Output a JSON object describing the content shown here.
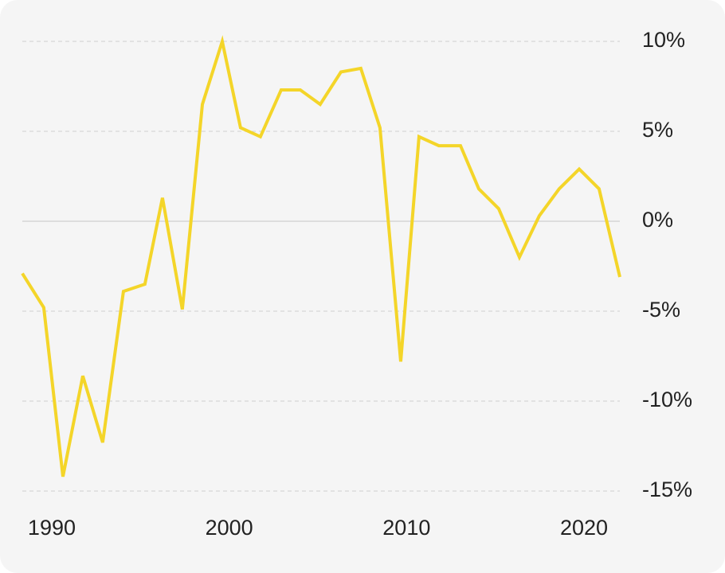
{
  "chart_data": {
    "type": "line",
    "x": [
      1988.34,
      1989.55,
      1990.63,
      1991.75,
      1992.87,
      1994.04,
      1995.25,
      1996.24,
      1997.36,
      1998.49,
      1999.61,
      2000.64,
      2001.76,
      2002.93,
      2004.01,
      2005.13,
      2006.3,
      2007.42,
      2008.5,
      2009.67,
      2010.7,
      2011.82,
      2013.04,
      2014.07,
      2015.19,
      2016.36,
      2017.48,
      2018.6,
      2019.73,
      2020.85,
      2022.02
    ],
    "series": [
      {
        "color": "#f4d529",
        "values": [
          -2.9,
          -4.8,
          -14.2,
          -8.6,
          -12.3,
          -3.9,
          -3.5,
          1.3,
          -4.9,
          6.5,
          10,
          5.2,
          4.7,
          7.3,
          7.3,
          6.5,
          8.3,
          8.5,
          5.2,
          -7.8,
          4.7,
          4.2,
          4.2,
          1.8,
          0.7,
          -2.0,
          0.3,
          1.8,
          2.9,
          1.8,
          -3.1
        ]
      }
    ],
    "xlim": [
      1988.34,
      2022.02
    ],
    "xticks": [
      1990,
      2000,
      2010,
      2020
    ],
    "ylim": [
      -15,
      10
    ],
    "yticks": [
      {
        "value": 10,
        "label": "10%"
      },
      {
        "value": 5,
        "label": "5%"
      },
      {
        "value": 0,
        "label": "0%"
      },
      {
        "value": -5,
        "label": "-5%"
      },
      {
        "value": -10,
        "label": "-10%"
      },
      {
        "value": -15,
        "label": "-15%"
      }
    ],
    "grid": true
  }
}
